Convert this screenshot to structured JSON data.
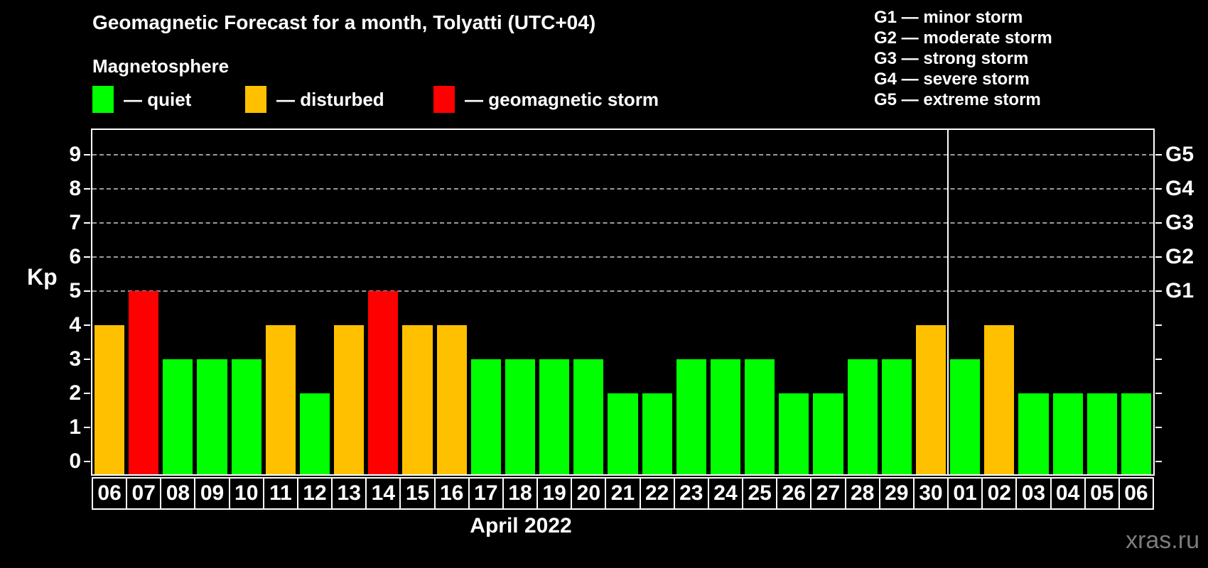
{
  "title": "Geomagnetic Forecast for a month, Tolyatti (UTC+04)",
  "legend": {
    "heading": "Magnetosphere",
    "items": [
      {
        "key": "quiet",
        "label": "— quiet",
        "color": "#00ff00"
      },
      {
        "key": "disturbed",
        "label": "— disturbed",
        "color": "#ffc000"
      },
      {
        "key": "storm",
        "label": "— geomagnetic storm",
        "color": "#ff0000"
      }
    ]
  },
  "g_legend": [
    "G1 — minor storm",
    "G2 — moderate storm",
    "G3 — strong storm",
    "G4 — severe storm",
    "G5 — extreme storm"
  ],
  "y_axis": {
    "label": "Kp",
    "ticks": [
      0,
      1,
      2,
      3,
      4,
      5,
      6,
      7,
      8,
      9
    ],
    "grid_ticks": [
      5,
      6,
      7,
      8,
      9
    ]
  },
  "right_axis": {
    "labels": [
      {
        "text": "G1",
        "kp": 5
      },
      {
        "text": "G2",
        "kp": 6
      },
      {
        "text": "G3",
        "kp": 7
      },
      {
        "text": "G4",
        "kp": 8
      },
      {
        "text": "G5",
        "kp": 9
      }
    ]
  },
  "x_axis": {
    "caption": "April 2022"
  },
  "watermark": "xras.ru",
  "chart_data": {
    "type": "bar",
    "title": "Geomagnetic Forecast for a month, Tolyatti (UTC+04)",
    "xlabel": "April 2022",
    "ylabel": "Kp",
    "ylim": [
      0,
      9
    ],
    "grid": "dashed horizontal at Kp 5-9",
    "legend_position": "top",
    "categories": [
      "06",
      "07",
      "08",
      "09",
      "10",
      "11",
      "12",
      "13",
      "14",
      "15",
      "16",
      "17",
      "18",
      "19",
      "20",
      "21",
      "22",
      "23",
      "24",
      "25",
      "26",
      "27",
      "28",
      "29",
      "30",
      "01",
      "02",
      "03",
      "04",
      "05",
      "06"
    ],
    "values": [
      4,
      5,
      3,
      3,
      3,
      4,
      2,
      4,
      5,
      4,
      4,
      3,
      3,
      3,
      3,
      2,
      2,
      3,
      3,
      3,
      2,
      2,
      3,
      3,
      4,
      3,
      4,
      2,
      2,
      2,
      2
    ],
    "statuses": [
      "disturbed",
      "storm",
      "quiet",
      "quiet",
      "quiet",
      "disturbed",
      "quiet",
      "disturbed",
      "storm",
      "disturbed",
      "disturbed",
      "quiet",
      "quiet",
      "quiet",
      "quiet",
      "quiet",
      "quiet",
      "quiet",
      "quiet",
      "quiet",
      "quiet",
      "quiet",
      "quiet",
      "quiet",
      "disturbed",
      "quiet",
      "disturbed",
      "quiet",
      "quiet",
      "quiet",
      "quiet"
    ],
    "status_colors": {
      "quiet": "#00ff00",
      "disturbed": "#ffc000",
      "storm": "#ff0000"
    },
    "month_separator_after_index": 24
  }
}
